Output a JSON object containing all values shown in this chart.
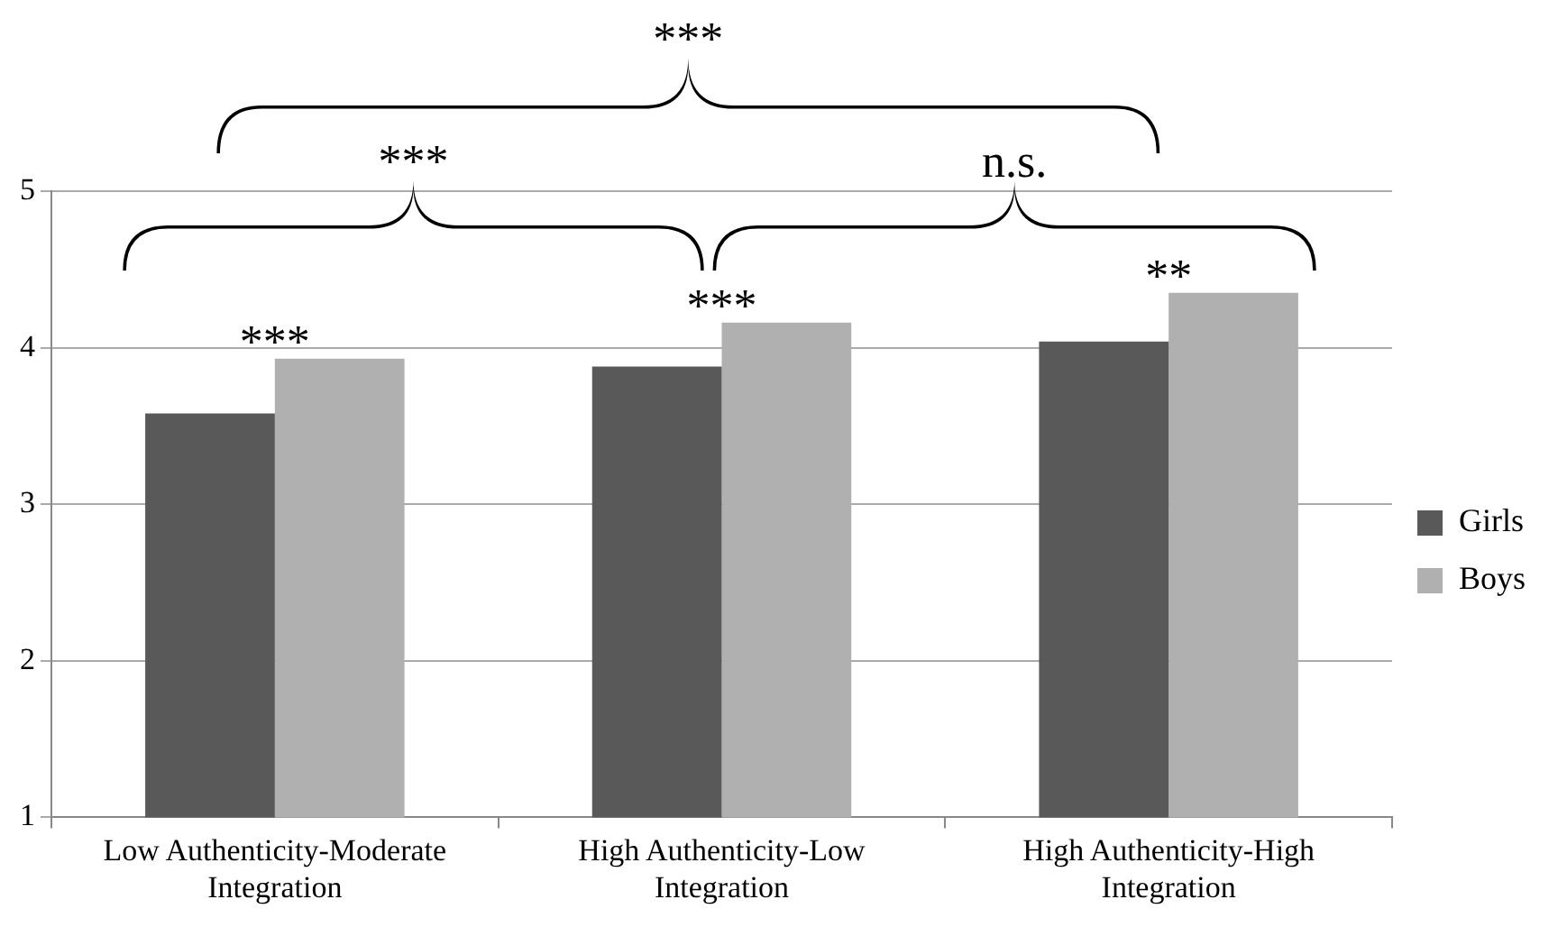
{
  "chart_data": {
    "type": "bar",
    "categories": [
      "Low Authenticity-Moderate Integration",
      "High Authenticity-Low Integration",
      "High Authenticity-High Integration"
    ],
    "series": [
      {
        "name": "Girls",
        "color": "#595959",
        "values": [
          3.58,
          3.88,
          4.04
        ]
      },
      {
        "name": "Boys",
        "color": "#b0b0b0",
        "values": [
          3.93,
          4.16,
          4.35
        ]
      }
    ],
    "ylim": [
      1,
      5
    ],
    "yticks": [
      1,
      2,
      3,
      4,
      5
    ],
    "grid": "y",
    "legend": "right",
    "annotations": [
      "***",
      "***",
      "n.s.",
      "***",
      "***",
      "**"
    ]
  }
}
